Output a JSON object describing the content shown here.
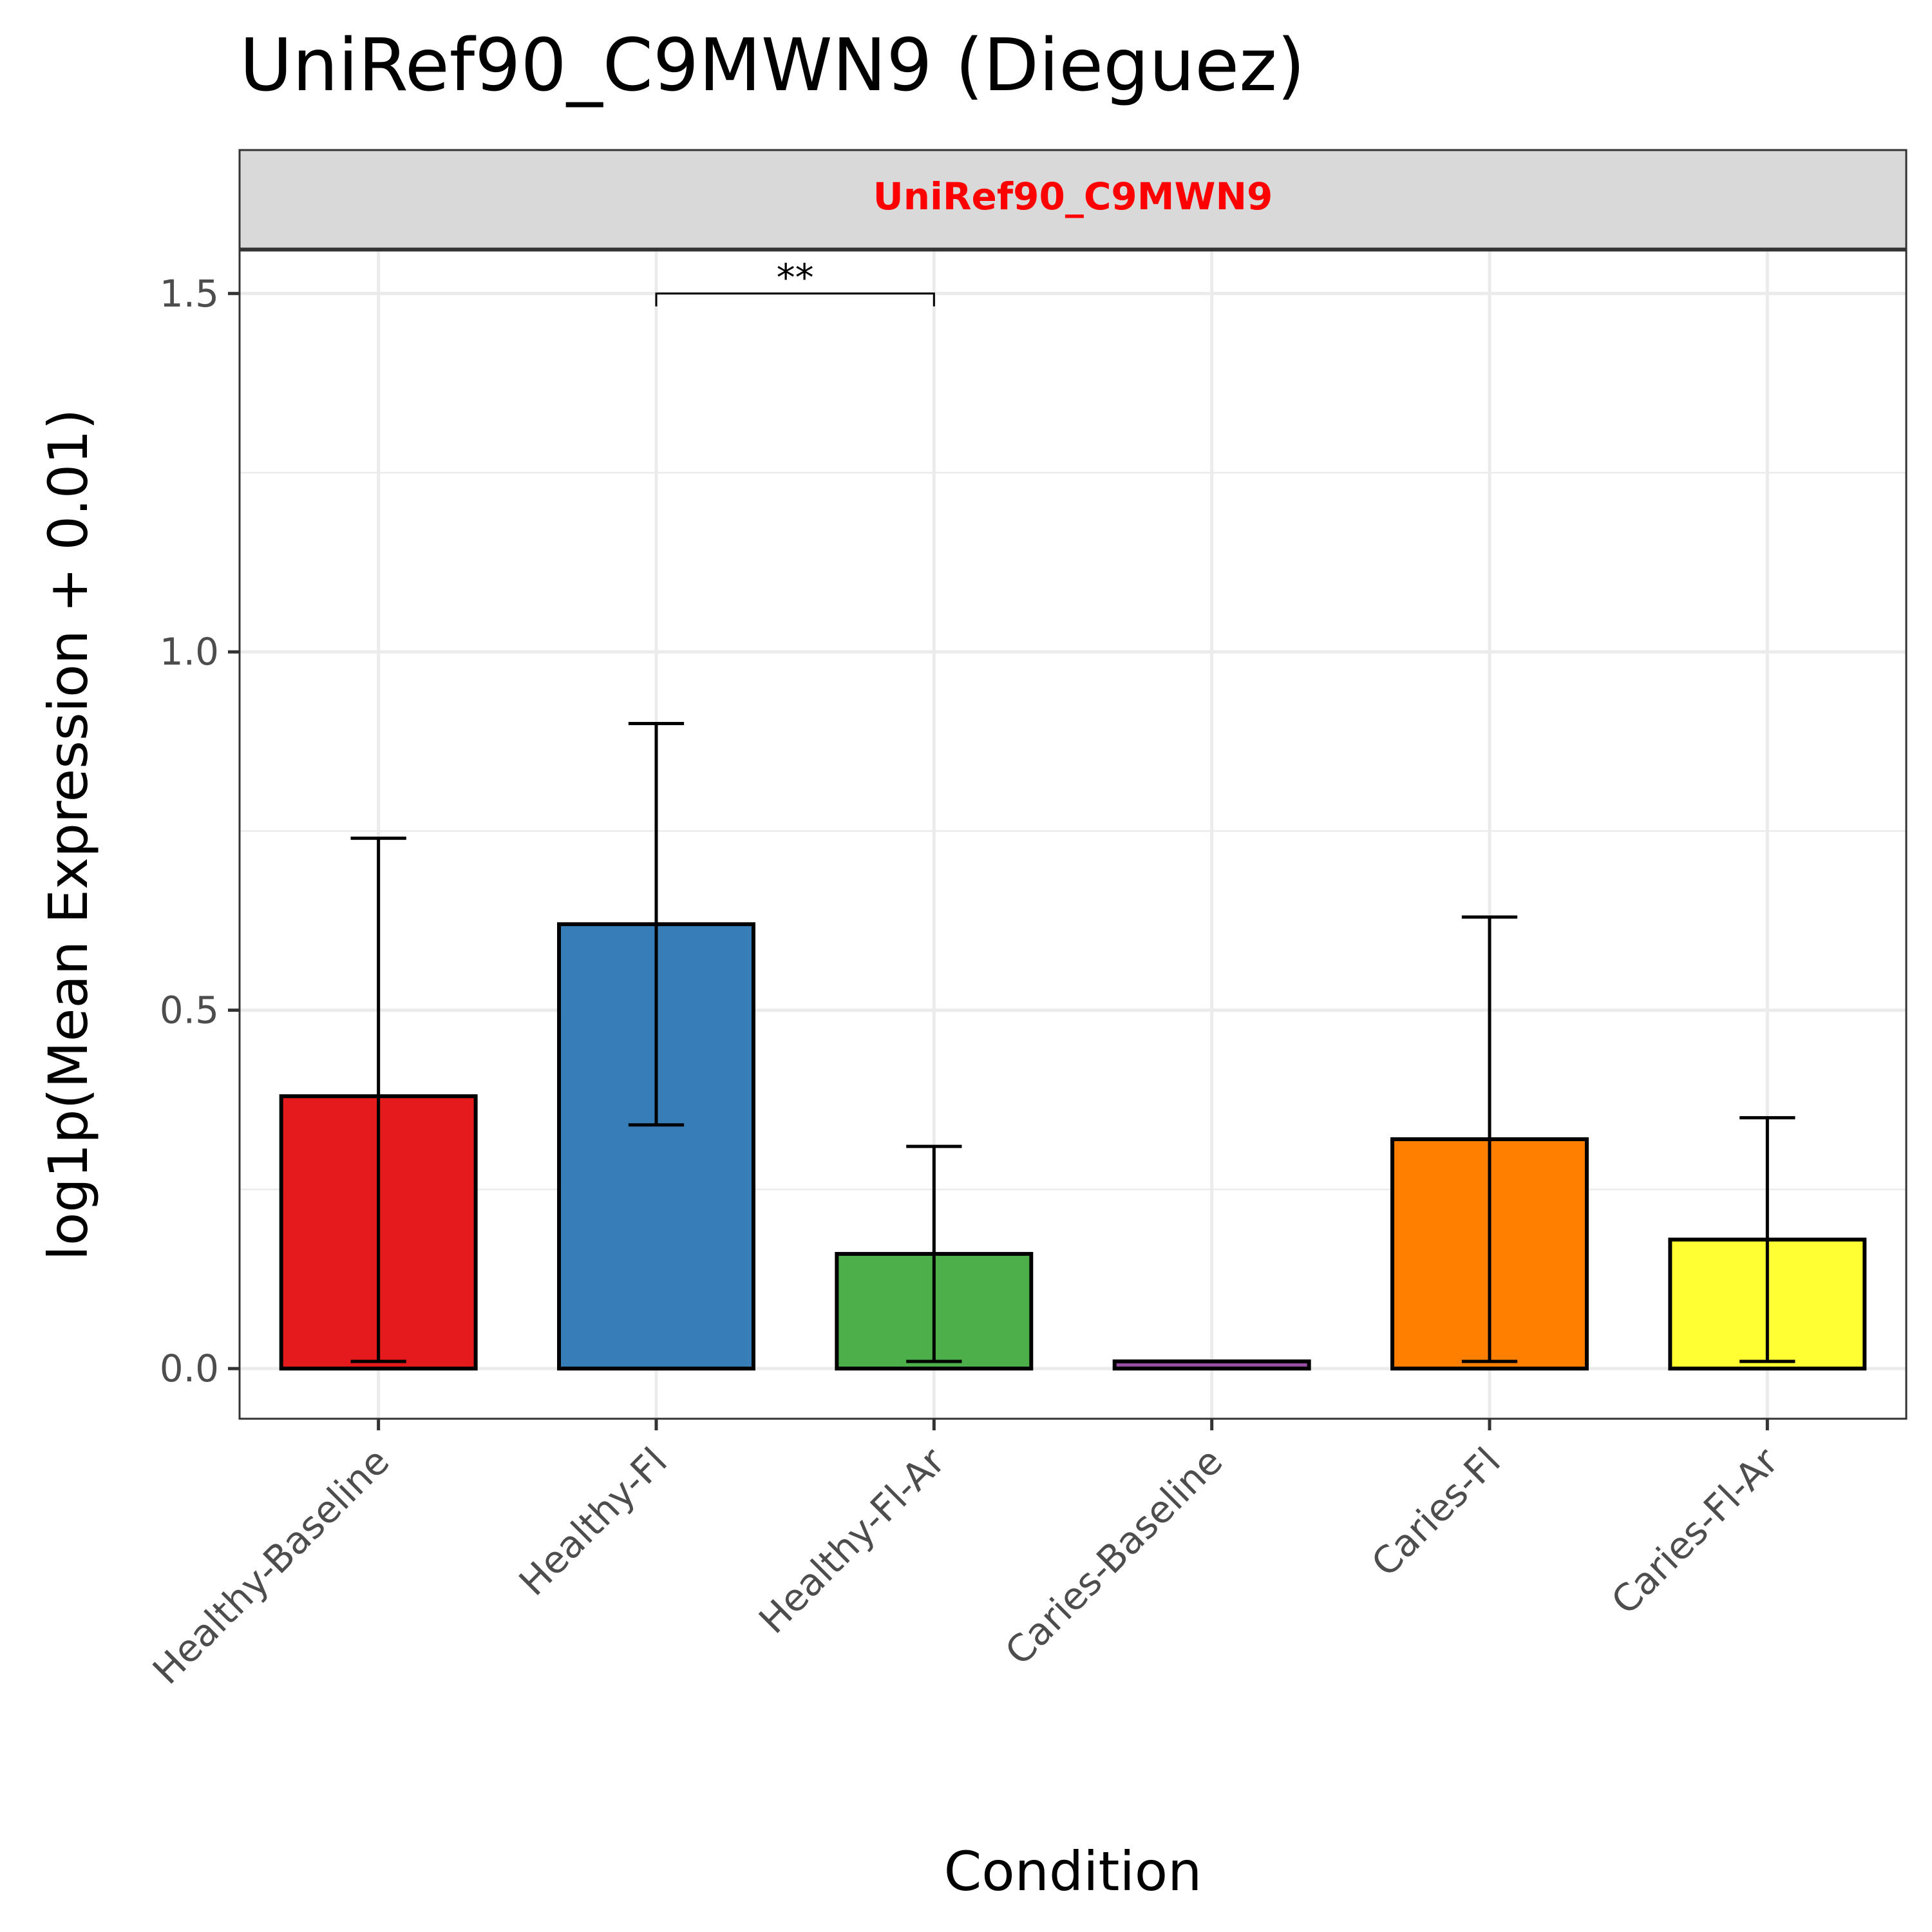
{
  "chart_data": {
    "type": "bar",
    "title": "UniRef90_C9MWN9 (Dieguez)",
    "facet_label": "UniRef90_C9MWN9",
    "xlabel": "Condition",
    "ylabel": "log1p(Mean Expression + 0.01)",
    "categories": [
      "Healthy-Baseline",
      "Healthy-Fl",
      "Healthy-Fl-Ar",
      "Caries-Baseline",
      "Caries-Fl",
      "Caries-Fl-Ar"
    ],
    "values": [
      0.38,
      0.62,
      0.16,
      0.01,
      0.32,
      0.18
    ],
    "error_low": [
      0.01,
      0.34,
      0.01,
      0.01,
      0.01,
      0.01
    ],
    "error_high": [
      0.74,
      0.9,
      0.31,
      0.01,
      0.63,
      0.35
    ],
    "colors": [
      "#e41a1c",
      "#377eb8",
      "#4daf4a",
      "#984ea3",
      "#ff7f00",
      "#ffff33"
    ],
    "ylim": [
      -0.07,
      1.56
    ],
    "yticks": [
      0.0,
      0.5,
      1.0,
      1.5
    ],
    "ytick_labels": [
      "0.0",
      "0.5",
      "1.0",
      "1.5"
    ],
    "grid": true,
    "significance": [
      {
        "from": 1,
        "to": 2,
        "y": 1.5,
        "label": "**"
      }
    ]
  }
}
